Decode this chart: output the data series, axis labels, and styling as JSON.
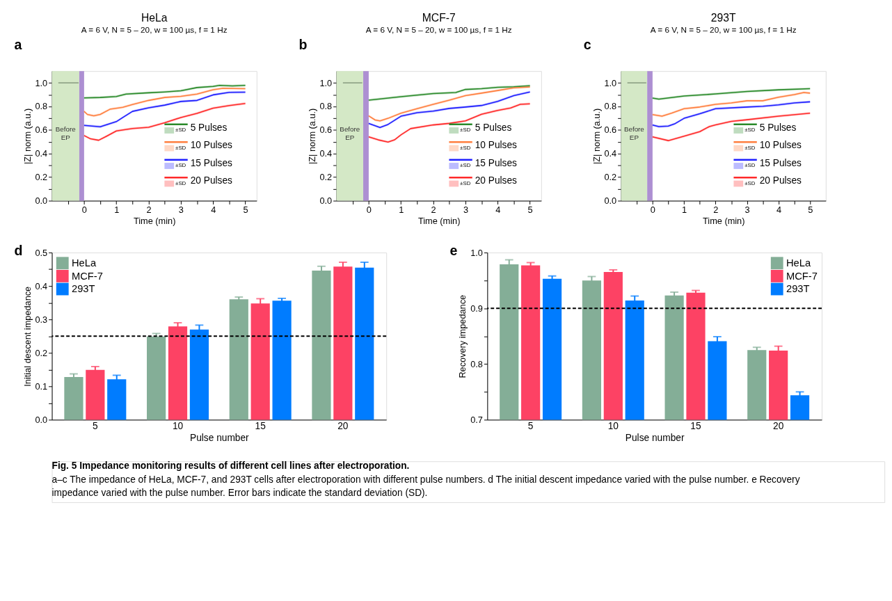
{
  "chart_data": [
    {
      "type": "line",
      "title": "HeLa",
      "subtitle": "A = 6 V, N = 5 – 20, w = 100 µs, f = 1 Hz",
      "xlabel": "Time (min)",
      "ylabel": "|Z| norm (a.u.)",
      "annotations": [
        "a",
        "±SD"
      ],
      "legend": "bottom right",
      "xlim": [
        -1,
        5.35
      ],
      "xticks": [
        {
          "value": -0.5,
          "label": null
        },
        0,
        {
          "value": 0.5,
          "label": null
        },
        1,
        {
          "value": 1.5,
          "label": null
        },
        2,
        {
          "value": 2.5,
          "label": null
        },
        3,
        {
          "value": 3.5,
          "label": null
        },
        4,
        {
          "value": 4.5,
          "label": null
        },
        5
      ],
      "ylim": [
        0,
        1.1
      ],
      "yticks": [
        {
          "value": 0,
          "label": "0.0"
        },
        {
          "value": 0.1,
          "label": null
        },
        {
          "value": 0.2,
          "label": "0.2"
        },
        {
          "value": 0.3,
          "label": null
        },
        {
          "value": 0.4,
          "label": "0.4"
        },
        {
          "value": 0.5,
          "label": null
        },
        {
          "value": 0.6,
          "label": "0.6"
        },
        {
          "value": 0.7,
          "label": null
        },
        {
          "value": 0.8,
          "label": "0.8"
        },
        {
          "value": 0.9,
          "label": null
        },
        {
          "value": 1,
          "label": "1.0"
        }
      ],
      "bands": [
        {
          "axis": "x",
          "from": -1,
          "to": -0.15,
          "label": "Before EP",
          "color": "#d4e8c6"
        },
        {
          "axis": "x",
          "from": -0.15,
          "to": 0,
          "color": "#ad8fd2"
        }
      ],
      "series": [
        {
          "color": "#8a9e82",
          "x": [
            -0.8,
            -0.17
          ],
          "values": [
            1,
            1
          ]
        },
        {
          "name": "5 Pulses",
          "color": "#2a8a2a",
          "x": [
            0,
            0.5,
            1,
            1.3,
            2,
            2.5,
            3,
            3.5,
            4,
            4.2,
            4.6,
            5
          ],
          "values": [
            0.872,
            0.876,
            0.884,
            0.905,
            0.916,
            0.923,
            0.933,
            0.96,
            0.97,
            0.979,
            0.974,
            0.979
          ],
          "lower": [
            0.862,
            0.866,
            0.874,
            0.895,
            0.906,
            0.913,
            0.923,
            0.95,
            0.96,
            0.969,
            0.964,
            0.969
          ],
          "upper": [
            0.882,
            0.886,
            0.894,
            0.915,
            0.926,
            0.933,
            0.943,
            0.97,
            0.98,
            0.989,
            0.984,
            0.989
          ]
        },
        {
          "name": "10 Pulses",
          "color": "#ff7f3f",
          "x": [
            0,
            0.1,
            0.3,
            0.5,
            0.8,
            1.2,
            1.5,
            2,
            2.5,
            3,
            3.5,
            4,
            4.3,
            5
          ],
          "values": [
            0.758,
            0.732,
            0.72,
            0.732,
            0.776,
            0.793,
            0.816,
            0.851,
            0.876,
            0.886,
            0.905,
            0.942,
            0.954,
            0.951
          ],
          "lower": [
            0.748,
            0.722,
            0.71,
            0.722,
            0.766,
            0.783,
            0.806,
            0.841,
            0.866,
            0.876,
            0.895,
            0.932,
            0.944,
            0.941
          ],
          "upper": [
            0.768,
            0.742,
            0.73,
            0.742,
            0.786,
            0.803,
            0.826,
            0.861,
            0.886,
            0.896,
            0.915,
            0.952,
            0.964,
            0.961
          ]
        },
        {
          "name": "15 Pulses",
          "color": "#2020ff",
          "x": [
            0,
            0.5,
            1,
            1.2,
            1.5,
            2,
            2.5,
            3,
            3.5,
            4,
            4.5,
            5
          ],
          "values": [
            0.639,
            0.627,
            0.671,
            0.706,
            0.758,
            0.788,
            0.811,
            0.842,
            0.851,
            0.898,
            0.919,
            0.921
          ],
          "lower": [
            0.629,
            0.617,
            0.661,
            0.696,
            0.748,
            0.778,
            0.801,
            0.832,
            0.841,
            0.888,
            0.909,
            0.911
          ],
          "upper": [
            0.649,
            0.637,
            0.681,
            0.716,
            0.768,
            0.798,
            0.821,
            0.852,
            0.861,
            0.908,
            0.929,
            0.931
          ]
        },
        {
          "name": "20 Pulses",
          "color": "#ff2a2a",
          "x": [
            0,
            0.2,
            0.45,
            0.7,
            1,
            1.5,
            2,
            2.5,
            3,
            3.5,
            4,
            4.5,
            5
          ],
          "values": [
            0.553,
            0.525,
            0.513,
            0.548,
            0.592,
            0.613,
            0.623,
            0.662,
            0.706,
            0.741,
            0.785,
            0.807,
            0.825
          ],
          "lower": [
            0.543,
            0.515,
            0.503,
            0.538,
            0.582,
            0.603,
            0.613,
            0.652,
            0.696,
            0.731,
            0.775,
            0.797,
            0.815
          ],
          "upper": [
            0.563,
            0.535,
            0.523,
            0.558,
            0.602,
            0.623,
            0.633,
            0.672,
            0.716,
            0.751,
            0.795,
            0.817,
            0.835
          ]
        }
      ]
    },
    {
      "type": "line",
      "title": "MCF-7",
      "subtitle": "A = 6 V, N = 5 – 20, w = 100 µs, f = 1 Hz",
      "xlabel": "Time (min)",
      "ylabel": "|Z| norm (a.u.)",
      "annotations": [
        "b",
        "±SD"
      ],
      "legend": "bottom right",
      "xlim": [
        -1,
        5.35
      ],
      "xticks": [
        {
          "value": -0.5,
          "label": null
        },
        0,
        {
          "value": 0.5,
          "label": null
        },
        1,
        {
          "value": 1.5,
          "label": null
        },
        2,
        {
          "value": 2.5,
          "label": null
        },
        3,
        {
          "value": 3.5,
          "label": null
        },
        4,
        {
          "value": 4.5,
          "label": null
        },
        5
      ],
      "ylim": [
        0,
        1.1
      ],
      "yticks": [
        {
          "value": 0,
          "label": "0.0"
        },
        {
          "value": 0.1,
          "label": null
        },
        {
          "value": 0.2,
          "label": "0.2"
        },
        {
          "value": 0.3,
          "label": null
        },
        {
          "value": 0.4,
          "label": "0.4"
        },
        {
          "value": 0.5,
          "label": null
        },
        {
          "value": 0.6,
          "label": "0.6"
        },
        {
          "value": 0.7,
          "label": null
        },
        {
          "value": 0.8,
          "label": "0.8"
        },
        {
          "value": 0.9,
          "label": null
        },
        {
          "value": 1,
          "label": "1.0"
        }
      ],
      "bands": [
        {
          "axis": "x",
          "from": -1,
          "to": -0.17,
          "label": "Before EP",
          "color": "#d4e8c6"
        },
        {
          "axis": "x",
          "from": -0.17,
          "to": 0,
          "color": "#ad8fd2"
        }
      ],
      "series": [
        {
          "color": "#8a9e82",
          "x": [
            -0.8,
            -0.2
          ],
          "values": [
            1,
            1
          ]
        },
        {
          "name": "5 Pulses",
          "color": "#2a8a2a",
          "x": [
            0,
            1,
            2,
            2.7,
            3,
            3.5,
            4,
            4.5,
            5
          ],
          "values": [
            0.853,
            0.883,
            0.909,
            0.918,
            0.944,
            0.951,
            0.962,
            0.967,
            0.976
          ],
          "lower": [
            0.843,
            0.873,
            0.899,
            0.908,
            0.934,
            0.941,
            0.952,
            0.957,
            0.966
          ],
          "upper": [
            0.863,
            0.893,
            0.919,
            0.928,
            0.954,
            0.961,
            0.972,
            0.977,
            0.986
          ]
        },
        {
          "name": "10 Pulses",
          "color": "#ff7f3f",
          "x": [
            0,
            0.2,
            0.35,
            0.6,
            1,
            1.5,
            2,
            2.5,
            3,
            3.5,
            4,
            4.5,
            5
          ],
          "values": [
            0.72,
            0.685,
            0.677,
            0.699,
            0.743,
            0.781,
            0.818,
            0.853,
            0.892,
            0.913,
            0.935,
            0.958,
            0.965
          ],
          "lower": [
            0.71,
            0.675,
            0.667,
            0.689,
            0.733,
            0.771,
            0.808,
            0.843,
            0.882,
            0.903,
            0.925,
            0.948,
            0.955
          ],
          "upper": [
            0.73,
            0.695,
            0.687,
            0.709,
            0.753,
            0.791,
            0.828,
            0.863,
            0.902,
            0.923,
            0.945,
            0.968,
            0.975
          ]
        },
        {
          "name": "15 Pulses",
          "color": "#2020ff",
          "x": [
            0,
            0.35,
            0.6,
            1,
            1.5,
            2,
            2.5,
            3,
            3.5,
            4,
            4.5,
            5
          ],
          "values": [
            0.656,
            0.621,
            0.647,
            0.717,
            0.747,
            0.76,
            0.783,
            0.795,
            0.808,
            0.843,
            0.892,
            0.923
          ],
          "lower": [
            0.646,
            0.611,
            0.637,
            0.707,
            0.737,
            0.75,
            0.773,
            0.785,
            0.798,
            0.833,
            0.882,
            0.913
          ],
          "upper": [
            0.666,
            0.631,
            0.657,
            0.727,
            0.757,
            0.77,
            0.793,
            0.805,
            0.818,
            0.853,
            0.902,
            0.933
          ]
        },
        {
          "name": "20 Pulses",
          "color": "#ff2a2a",
          "x": [
            0,
            0.3,
            0.6,
            0.8,
            1,
            1.3,
            2,
            2.5,
            3,
            3.5,
            4,
            4.4,
            4.7,
            5
          ],
          "values": [
            0.542,
            0.516,
            0.498,
            0.516,
            0.559,
            0.612,
            0.643,
            0.656,
            0.677,
            0.734,
            0.766,
            0.787,
            0.818,
            0.822
          ],
          "lower": [
            0.532,
            0.506,
            0.488,
            0.506,
            0.549,
            0.602,
            0.633,
            0.646,
            0.667,
            0.724,
            0.756,
            0.777,
            0.808,
            0.812
          ],
          "upper": [
            0.552,
            0.526,
            0.508,
            0.526,
            0.569,
            0.622,
            0.653,
            0.666,
            0.687,
            0.744,
            0.776,
            0.797,
            0.828,
            0.832
          ]
        }
      ]
    },
    {
      "type": "line",
      "title": "293T",
      "subtitle": "A = 6 V, N = 5 – 20, w = 100 µs, f = 1 Hz",
      "xlabel": "Time (min)",
      "ylabel": "|Z| norm (a.u.)",
      "annotations": [
        "c",
        "±SD"
      ],
      "legend": "bottom right",
      "xlim": [
        -1,
        5.5
      ],
      "xticks": [
        {
          "value": -0.5,
          "label": null
        },
        0,
        {
          "value": 0.5,
          "label": null
        },
        1,
        {
          "value": 1.5,
          "label": null
        },
        2,
        {
          "value": 2.5,
          "label": null
        },
        3,
        {
          "value": 3.5,
          "label": null
        },
        4,
        {
          "value": 4.5,
          "label": null
        },
        5
      ],
      "ylim": [
        0,
        1.1
      ],
      "yticks": [
        {
          "value": 0,
          "label": "0.0"
        },
        {
          "value": 0.1,
          "label": null
        },
        {
          "value": 0.2,
          "label": "0.2"
        },
        {
          "value": 0.3,
          "label": null
        },
        {
          "value": 0.4,
          "label": "0.4"
        },
        {
          "value": 0.5,
          "label": null
        },
        {
          "value": 0.6,
          "label": "0.6"
        },
        {
          "value": 0.7,
          "label": null
        },
        {
          "value": 0.8,
          "label": "0.8"
        },
        {
          "value": 0.9,
          "label": null
        },
        {
          "value": 1,
          "label": "1.0"
        }
      ],
      "bands": [
        {
          "axis": "x",
          "from": -1,
          "to": -0.17,
          "label": "Before EP",
          "color": "#d4e8c6"
        },
        {
          "axis": "x",
          "from": -0.17,
          "to": 0,
          "color": "#ad8fd2"
        }
      ],
      "series": [
        {
          "color": "#8a9e82",
          "x": [
            -0.8,
            -0.2
          ],
          "values": [
            1,
            1
          ]
        },
        {
          "name": "5 Pulses",
          "color": "#2a8a2a",
          "x": [
            0,
            0.2,
            1,
            2,
            3,
            4,
            5
          ],
          "values": [
            0.871,
            0.862,
            0.888,
            0.906,
            0.927,
            0.941,
            0.951
          ],
          "lower": [
            0.861,
            0.852,
            0.878,
            0.896,
            0.917,
            0.931,
            0.941
          ],
          "upper": [
            0.881,
            0.872,
            0.898,
            0.916,
            0.937,
            0.951,
            0.961
          ]
        },
        {
          "name": "10 Pulses",
          "color": "#ff7f3f",
          "x": [
            0,
            0.3,
            0.6,
            1,
            1.5,
            2,
            2.5,
            3,
            3.5,
            4,
            4.5,
            4.8,
            5
          ],
          "values": [
            0.731,
            0.717,
            0.743,
            0.781,
            0.795,
            0.818,
            0.83,
            0.848,
            0.848,
            0.878,
            0.9,
            0.918,
            0.913
          ],
          "lower": [
            0.721,
            0.707,
            0.733,
            0.771,
            0.785,
            0.808,
            0.82,
            0.838,
            0.838,
            0.868,
            0.89,
            0.908,
            0.903
          ],
          "upper": [
            0.741,
            0.727,
            0.753,
            0.791,
            0.805,
            0.828,
            0.84,
            0.858,
            0.858,
            0.888,
            0.91,
            0.928,
            0.923
          ]
        },
        {
          "name": "15 Pulses",
          "color": "#2020ff",
          "x": [
            0,
            0.2,
            0.5,
            0.7,
            1,
            1.5,
            2,
            3,
            3.5,
            4,
            4.5,
            5
          ],
          "values": [
            0.642,
            0.629,
            0.633,
            0.652,
            0.699,
            0.738,
            0.781,
            0.795,
            0.801,
            0.813,
            0.83,
            0.839
          ],
          "lower": [
            0.632,
            0.619,
            0.623,
            0.642,
            0.689,
            0.728,
            0.771,
            0.785,
            0.791,
            0.803,
            0.82,
            0.829
          ],
          "upper": [
            0.652,
            0.639,
            0.643,
            0.662,
            0.709,
            0.748,
            0.791,
            0.805,
            0.811,
            0.823,
            0.84,
            0.849
          ]
        },
        {
          "name": "20 Pulses",
          "color": "#ff2a2a",
          "x": [
            0,
            0.5,
            1,
            1.5,
            1.8,
            2,
            2.5,
            3,
            4,
            5
          ],
          "values": [
            0.542,
            0.51,
            0.547,
            0.586,
            0.629,
            0.643,
            0.673,
            0.687,
            0.717,
            0.743
          ],
          "lower": [
            0.532,
            0.5,
            0.537,
            0.576,
            0.619,
            0.633,
            0.663,
            0.677,
            0.707,
            0.733
          ],
          "upper": [
            0.552,
            0.52,
            0.557,
            0.596,
            0.639,
            0.653,
            0.683,
            0.697,
            0.727,
            0.753
          ]
        }
      ]
    },
    {
      "type": "bar",
      "xlabel": "Pulse number",
      "ylabel": "Initial descent impedance",
      "annotations": [
        "d"
      ],
      "legend": "top left",
      "categories": [
        "5",
        "10",
        "15",
        "20"
      ],
      "ylim": [
        0,
        0.5
      ],
      "yticks": [
        {
          "value": 0,
          "label": "0.0"
        },
        {
          "value": 0.05,
          "label": null
        },
        0.1,
        {
          "value": 0.15,
          "label": null
        },
        0.2,
        {
          "value": 0.25,
          "label": null
        },
        0.3,
        {
          "value": 0.35,
          "label": null
        },
        0.4,
        {
          "value": 0.45,
          "label": null
        },
        0.5
      ],
      "ref_lines": [
        {
          "axis": "y",
          "value": 0.25,
          "color": "#000000",
          "line_style": "dashed"
        }
      ],
      "series": [
        {
          "name": "HeLa",
          "color": "#84ae97",
          "values": [
            0.128,
            0.249,
            0.36,
            0.446
          ],
          "errors": [
            0.009,
            0.009,
            0.007,
            0.013
          ]
        },
        {
          "name": "MCF-7",
          "color": "#fd4264",
          "values": [
            0.149,
            0.279,
            0.348,
            0.458
          ],
          "errors": [
            0.01,
            0.011,
            0.014,
            0.013
          ]
        },
        {
          "name": "293T",
          "color": "#007cff",
          "values": [
            0.121,
            0.27,
            0.356,
            0.455
          ],
          "errors": [
            0.012,
            0.013,
            0.007,
            0.016
          ]
        }
      ]
    },
    {
      "type": "bar",
      "xlabel": "Pulse number",
      "ylabel": "Recovery impedance",
      "annotations": [
        "e"
      ],
      "legend": "top right",
      "categories": [
        "5",
        "10",
        "15",
        "20"
      ],
      "ylim": [
        0.7,
        1.0
      ],
      "yticks": [
        0.7,
        {
          "value": 0.75,
          "label": null
        },
        0.8,
        {
          "value": 0.85,
          "label": null
        },
        0.9,
        {
          "value": 0.95,
          "label": null
        },
        {
          "value": 1.0,
          "label": "1.0"
        }
      ],
      "ref_lines": [
        {
          "axis": "y",
          "value": 0.9,
          "color": "#000000",
          "line_style": "dashed"
        }
      ],
      "series": [
        {
          "name": "HeLa",
          "color": "#84ae97",
          "values": [
            0.979,
            0.95,
            0.923,
            0.825
          ],
          "errors": [
            0.008,
            0.007,
            0.006,
            0.005
          ]
        },
        {
          "name": "MCF-7",
          "color": "#fd4264",
          "values": [
            0.977,
            0.965,
            0.928,
            0.824
          ],
          "errors": [
            0.005,
            0.004,
            0.004,
            0.008
          ]
        },
        {
          "name": "293T",
          "color": "#007cff",
          "values": [
            0.953,
            0.914,
            0.841,
            0.744
          ],
          "errors": [
            0.005,
            0.008,
            0.008,
            0.006
          ]
        }
      ]
    },
    {
      "type": "other",
      "title": "Fig. 5 Impedance monitoring results of different cell lines after electroporation.",
      "annotations": [
        "a–c The impedance of HeLa, MCF-7, and 293T cells after electroporation with different pulse numbers. d The initial descent impedance varied with the pulse number. e Recovery impedance varied with the pulse number. Error bars indicate the standard deviation (SD)."
      ]
    }
  ]
}
